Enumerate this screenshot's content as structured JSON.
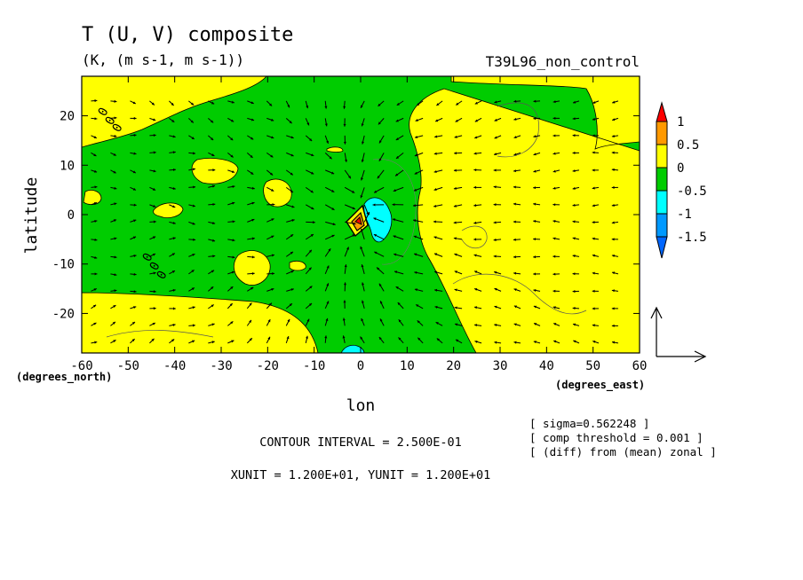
{
  "chart_data": {
    "type": "contour+vector",
    "title": "T (U, V) composite",
    "subtitle": "(K, (m s-1, m s-1))",
    "run_label": "T39L96_non_control",
    "xlabel": "lon",
    "ylabel": "latitude",
    "x_unit_label": "(degrees_east)",
    "y_unit_label": "(degrees_north)",
    "xlim": [
      -60,
      60
    ],
    "ylim": [
      -28,
      28
    ],
    "x_ticks": [
      -60,
      -50,
      -40,
      -30,
      -20,
      -10,
      0,
      10,
      20,
      30,
      40,
      50,
      60
    ],
    "x_tick_labels": [
      "-60",
      "-50",
      "-40",
      "-30",
      "-20",
      "-10",
      "0",
      "10",
      "20",
      "30",
      "40",
      "50",
      "60"
    ],
    "y_ticks": [
      -20,
      -10,
      0,
      10,
      20
    ],
    "y_tick_labels": [
      "-20",
      "-10",
      "0",
      "10",
      "20"
    ],
    "colorbar": {
      "levels": [
        -1.5,
        -1,
        -0.5,
        0,
        0.5,
        1
      ],
      "labels": [
        "1",
        "0.5",
        "0",
        "-0.5",
        "-1",
        "-1.5"
      ],
      "colors": [
        "#ff0000",
        "#ff9900",
        "#ffff00",
        "#00cc00",
        "#00ffff",
        "#0099ff",
        "#0066ff"
      ]
    },
    "contour_labels": [
      "0",
      "0",
      "0",
      "0",
      "0",
      "0"
    ],
    "annotations": {
      "sigma": "[ sigma=0.562248 ]",
      "threshold": "[ comp threshold = 0.001 ]",
      "diff": "[ (diff) from (mean) zonal ]",
      "contour_interval": "CONTOUR INTERVAL = 2.500E-01",
      "units": "XUNIT = 1.200E+01, YUNIT = 1.200E+01"
    },
    "regions": {
      "positive_yellow": "north-west corner, east of ~20E, south-west band, small islands",
      "negative_green": "central and western domain",
      "strong_negative_cyan": "near 0-5E on the equator and at south edge near 0E",
      "positive_core": "small orange/red core near 0E, 0N"
    }
  },
  "colors": {
    "yellow": "#ffff00",
    "green": "#00cc00",
    "cyan": "#00ffff",
    "orange": "#ff9900",
    "red": "#ff0000",
    "blue": "#0066ff"
  }
}
